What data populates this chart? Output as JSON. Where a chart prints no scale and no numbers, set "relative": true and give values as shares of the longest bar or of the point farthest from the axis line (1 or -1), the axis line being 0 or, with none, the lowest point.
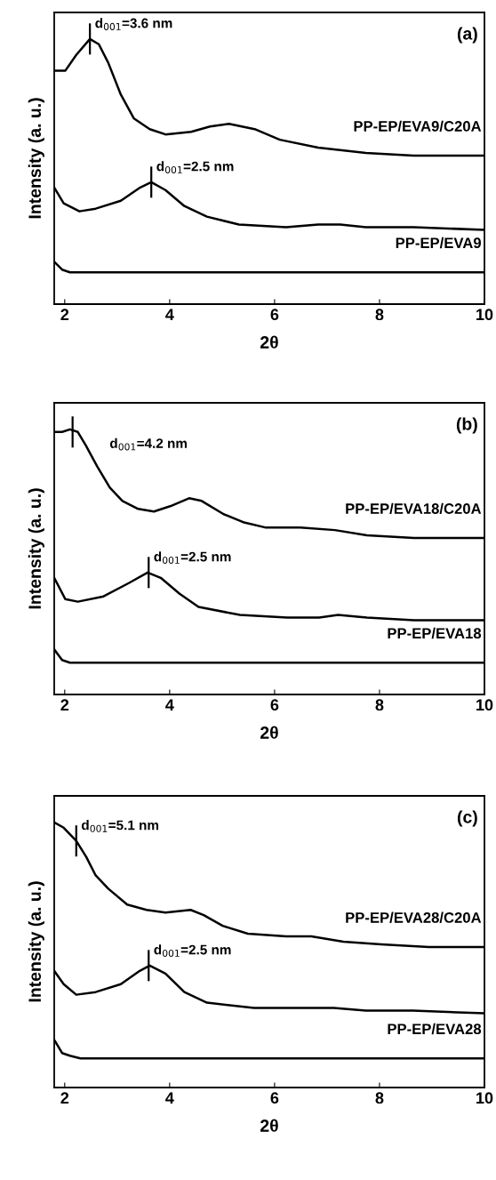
{
  "chart_data": [
    {
      "type": "line",
      "title": "(a)",
      "xlabel": "2θ",
      "ylabel": "Intensity (a. u.)",
      "relative": true,
      "xlim": [
        1.8,
        10
      ],
      "xticks": [
        2,
        4,
        6,
        8,
        10
      ],
      "tick_labels": "x",
      "grid": false,
      "legend": false,
      "marker": "none",
      "line_style": "solid",
      "series": [
        {
          "name": "PP-EP/EVA9/C20A",
          "color": "#000000",
          "x": [
            1.8,
            2.01,
            2.22,
            2.48,
            2.65,
            2.83,
            3.07,
            3.32,
            3.62,
            3.92,
            4.41,
            4.77,
            5.13,
            5.62,
            6.1,
            6.83,
            7.74,
            8.65,
            10
          ],
          "values": [
            0.88,
            0.88,
            0.94,
            1.0,
            0.98,
            0.91,
            0.79,
            0.7,
            0.66,
            0.64,
            0.65,
            0.67,
            0.68,
            0.66,
            0.62,
            0.59,
            0.57,
            0.56,
            0.56
          ]
        },
        {
          "color": "#000000",
          "x": [
            1.8,
            1.98,
            2.28,
            2.59,
            3.07,
            3.44,
            3.65,
            3.92,
            4.28,
            4.71,
            5.32,
            6.22,
            6.83,
            7.25,
            7.74,
            8.65,
            10
          ],
          "values": [
            0.44,
            0.38,
            0.35,
            0.36,
            0.39,
            0.44,
            0.46,
            0.43,
            0.37,
            0.33,
            0.3,
            0.29,
            0.3,
            0.3,
            0.29,
            0.29,
            0.28
          ]
        },
        {
          "name": "PP-EP/EVA9",
          "color": "#000000",
          "x": [
            1.8,
            1.95,
            2.1,
            2.3,
            10
          ],
          "values": [
            0.16,
            0.13,
            0.12,
            0.12,
            0.12
          ]
        }
      ],
      "annotations": [
        {
          "text": "d$_{001}$=3.6 nm",
          "x": 2.48,
          "y": 1.0
        },
        {
          "text": "d$_{001}$=2.5 nm",
          "x": 3.65,
          "y": 0.46
        }
      ]
    },
    {
      "type": "line",
      "title": "(b)",
      "xlabel": "2θ",
      "ylabel": "Intensity (a. u.)",
      "relative": true,
      "xlim": [
        1.8,
        10
      ],
      "xticks": [
        2,
        4,
        6,
        8,
        10
      ],
      "tick_labels": "x",
      "grid": false,
      "legend": false,
      "marker": "none",
      "line_style": "solid",
      "series": [
        {
          "name": "PP-EP/EVA18/C20A",
          "color": "#000000",
          "x": [
            1.8,
            1.95,
            2.1,
            2.25,
            2.4,
            2.62,
            2.86,
            3.1,
            3.4,
            3.7,
            4.01,
            4.37,
            4.61,
            5.03,
            5.4,
            5.82,
            6.49,
            7.15,
            7.76,
            8.66,
            10
          ],
          "values": [
            0.99,
            0.99,
            1.0,
            0.99,
            0.94,
            0.86,
            0.78,
            0.73,
            0.7,
            0.69,
            0.71,
            0.74,
            0.73,
            0.68,
            0.65,
            0.63,
            0.63,
            0.62,
            0.6,
            0.59,
            0.59
          ]
        },
        {
          "color": "#000000",
          "x": [
            1.8,
            2.01,
            2.25,
            2.74,
            3.22,
            3.58,
            3.83,
            4.19,
            4.55,
            5.34,
            6.24,
            6.85,
            7.21,
            7.76,
            8.66,
            10
          ],
          "values": [
            0.44,
            0.36,
            0.35,
            0.37,
            0.42,
            0.46,
            0.44,
            0.38,
            0.33,
            0.3,
            0.29,
            0.29,
            0.3,
            0.29,
            0.28,
            0.28
          ]
        },
        {
          "name": "PP-EP/EVA18",
          "color": "#000000",
          "x": [
            1.8,
            1.95,
            2.1,
            2.3,
            10
          ],
          "values": [
            0.17,
            0.13,
            0.12,
            0.12,
            0.12
          ]
        }
      ],
      "annotations": [
        {
          "text": "d$_{001}$=4.2 nm",
          "x": 2.15,
          "y": 0.99
        },
        {
          "text": "d$_{001}$=2.5 nm",
          "x": 3.6,
          "y": 0.46
        }
      ]
    },
    {
      "type": "line",
      "title": "(c)",
      "xlabel": "2θ",
      "ylabel": "Intensity (a. u.)",
      "relative": true,
      "xlim": [
        1.8,
        10
      ],
      "xticks": [
        2,
        4,
        6,
        8,
        10
      ],
      "tick_labels": "x",
      "grid": false,
      "legend": false,
      "marker": "none",
      "line_style": "solid",
      "series": [
        {
          "name": "PP-EP/EVA28/C20A",
          "color": "#000000",
          "x": [
            1.8,
            1.98,
            2.22,
            2.41,
            2.59,
            2.83,
            3.19,
            3.56,
            3.92,
            4.4,
            4.65,
            5.01,
            5.49,
            6.22,
            6.7,
            7.31,
            8.03,
            8.94,
            10
          ],
          "values": [
            1.0,
            0.98,
            0.93,
            0.87,
            0.8,
            0.75,
            0.69,
            0.67,
            0.66,
            0.67,
            0.65,
            0.61,
            0.58,
            0.57,
            0.57,
            0.55,
            0.54,
            0.53,
            0.53
          ]
        },
        {
          "color": "#000000",
          "x": [
            1.8,
            1.98,
            2.22,
            2.59,
            3.07,
            3.43,
            3.62,
            3.92,
            4.28,
            4.71,
            5.61,
            6.52,
            7.13,
            7.74,
            8.64,
            10
          ],
          "values": [
            0.44,
            0.39,
            0.35,
            0.36,
            0.39,
            0.44,
            0.46,
            0.43,
            0.36,
            0.32,
            0.3,
            0.3,
            0.3,
            0.29,
            0.29,
            0.28
          ]
        },
        {
          "name": "PP-EP/EVA28",
          "color": "#000000",
          "x": [
            1.8,
            1.95,
            2.1,
            2.3,
            10
          ],
          "values": [
            0.18,
            0.13,
            0.12,
            0.11,
            0.11
          ]
        }
      ],
      "annotations": [
        {
          "text": "d$_{001}$=5.1 nm",
          "x": 2.22,
          "y": 0.93
        },
        {
          "text": "d$_{001}$=2.5 nm",
          "x": 3.6,
          "y": 0.46
        }
      ]
    }
  ]
}
